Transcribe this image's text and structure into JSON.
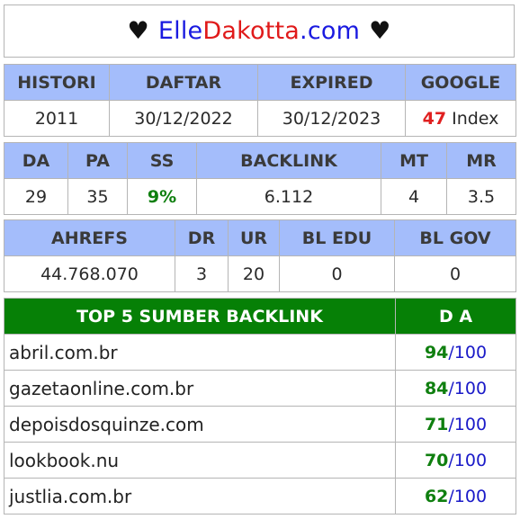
{
  "header": {
    "heart_left": "♥",
    "name_part1": "Elle",
    "name_part2": "Dakotta",
    "name_part3": ".com",
    "heart_right": "♥"
  },
  "table1": {
    "headers": [
      "HISTORI",
      "DAFTAR",
      "EXPIRED",
      "GOOGLE"
    ],
    "histori": "2011",
    "daftar": "30/12/2022",
    "expired": "30/12/2023",
    "google_count": "47",
    "google_suffix": " Index"
  },
  "table2": {
    "headers": [
      "DA",
      "PA",
      "SS",
      "BACKLINK",
      "MT",
      "MR"
    ],
    "values": [
      "29",
      "35",
      "9%",
      "6.112",
      "4",
      "3.5"
    ]
  },
  "table3": {
    "headers": [
      "AHREFS",
      "DR",
      "UR",
      "BL EDU",
      "BL GOV"
    ],
    "values": [
      "44.768.070",
      "3",
      "20",
      "0",
      "0"
    ]
  },
  "top5": {
    "header_left": "TOP 5 SUMBER BACKLINK",
    "header_right": "D A",
    "max": "/100",
    "rows": [
      {
        "site": "abril.com.br",
        "da": "94"
      },
      {
        "site": "gazetaonline.com.br",
        "da": "84"
      },
      {
        "site": "depoisdosquinze.com",
        "da": "71"
      },
      {
        "site": "lookbook.nu",
        "da": "70"
      },
      {
        "site": "justlia.com.br",
        "da": "62"
      }
    ]
  },
  "colors": {
    "header_bg": "#a4bdfb",
    "top5_header_bg": "#068006",
    "accent_red": "#e02020",
    "accent_green": "#0f7f0f",
    "accent_blue": "#1a1ac8"
  }
}
